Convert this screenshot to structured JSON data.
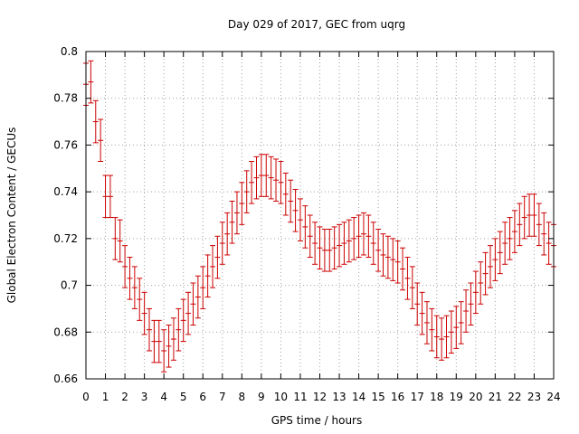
{
  "chart_data": {
    "type": "scatter",
    "title": "Day 029 of 2017, GEC from uqrg",
    "xlabel": "GPS time / hours",
    "ylabel": "Global Electron Content / GECUs",
    "xlim": [
      0,
      24
    ],
    "ylim": [
      0.66,
      0.8
    ],
    "x_ticks": [
      "0",
      "1",
      "2",
      "3",
      "4",
      "5",
      "6",
      "7",
      "8",
      "9",
      "10",
      "11",
      "12",
      "13",
      "14",
      "15",
      "16",
      "17",
      "18",
      "19",
      "20",
      "21",
      "22",
      "23",
      "24"
    ],
    "y_ticks": [
      "0.66",
      "0.68",
      "0.7",
      "0.72",
      "0.74",
      "0.76",
      "0.78",
      "0.8"
    ],
    "grid": true,
    "series_color": "#cc0000",
    "error": 0.009,
    "x": [
      0.0,
      0.25,
      0.5,
      0.75,
      1.0,
      1.25,
      1.5,
      1.75,
      2.0,
      2.25,
      2.5,
      2.75,
      3.0,
      3.25,
      3.5,
      3.75,
      4.0,
      4.25,
      4.5,
      4.75,
      5.0,
      5.25,
      5.5,
      5.75,
      6.0,
      6.25,
      6.5,
      6.75,
      7.0,
      7.25,
      7.5,
      7.75,
      8.0,
      8.25,
      8.5,
      8.75,
      9.0,
      9.25,
      9.5,
      9.75,
      10.0,
      10.25,
      10.5,
      10.75,
      11.0,
      11.25,
      11.5,
      11.75,
      12.0,
      12.25,
      12.5,
      12.75,
      13.0,
      13.25,
      13.5,
      13.75,
      14.0,
      14.25,
      14.5,
      14.75,
      15.0,
      15.25,
      15.5,
      15.75,
      16.0,
      16.25,
      16.5,
      16.75,
      17.0,
      17.25,
      17.5,
      17.75,
      18.0,
      18.25,
      18.5,
      18.75,
      19.0,
      19.25,
      19.5,
      19.75,
      20.0,
      20.25,
      20.5,
      20.75,
      21.0,
      21.25,
      21.5,
      21.75,
      22.0,
      22.25,
      22.5,
      22.75,
      23.0,
      23.25,
      23.5,
      23.75,
      24.0
    ],
    "values": [
      0.786,
      0.787,
      0.77,
      0.762,
      0.738,
      0.738,
      0.72,
      0.719,
      0.708,
      0.703,
      0.699,
      0.694,
      0.688,
      0.681,
      0.676,
      0.676,
      0.672,
      0.674,
      0.677,
      0.681,
      0.685,
      0.688,
      0.692,
      0.695,
      0.699,
      0.704,
      0.708,
      0.712,
      0.718,
      0.722,
      0.727,
      0.731,
      0.735,
      0.74,
      0.744,
      0.746,
      0.747,
      0.747,
      0.746,
      0.745,
      0.744,
      0.739,
      0.736,
      0.732,
      0.728,
      0.725,
      0.721,
      0.718,
      0.716,
      0.715,
      0.715,
      0.716,
      0.717,
      0.718,
      0.719,
      0.72,
      0.721,
      0.722,
      0.721,
      0.718,
      0.715,
      0.713,
      0.712,
      0.711,
      0.71,
      0.707,
      0.703,
      0.699,
      0.692,
      0.688,
      0.684,
      0.681,
      0.678,
      0.677,
      0.678,
      0.68,
      0.682,
      0.684,
      0.689,
      0.692,
      0.697,
      0.701,
      0.705,
      0.708,
      0.711,
      0.714,
      0.718,
      0.72,
      0.723,
      0.726,
      0.729,
      0.73,
      0.73,
      0.726,
      0.722,
      0.718,
      0.717
    ]
  }
}
